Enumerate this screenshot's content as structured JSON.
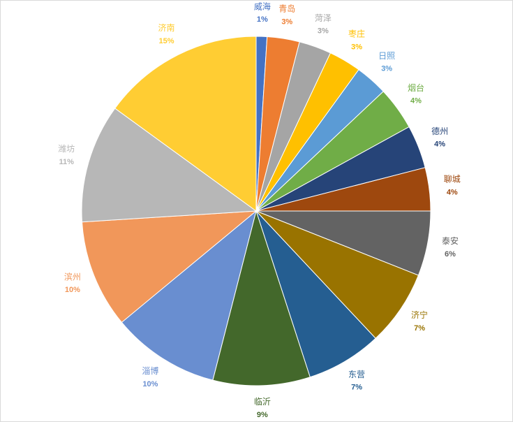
{
  "chart_data": {
    "type": "pie",
    "categories": [
      "威海",
      "青岛",
      "菏泽",
      "枣庄",
      "日照",
      "烟台",
      "德州",
      "聊城",
      "泰安",
      "济宁",
      "东营",
      "临沂",
      "淄博",
      "滨州",
      "潍坊",
      "济南"
    ],
    "values": [
      1,
      3,
      3,
      3,
      3,
      4,
      4,
      4,
      6,
      7,
      7,
      9,
      10,
      10,
      11,
      15
    ],
    "value_labels": [
      "1%",
      "3%",
      "3%",
      "3%",
      "3%",
      "4%",
      "4%",
      "4%",
      "6%",
      "7%",
      "7%",
      "9%",
      "10%",
      "10%",
      "11%",
      "15%"
    ],
    "colors": [
      "#4472c4",
      "#ed7d31",
      "#a5a5a5",
      "#ffc000",
      "#5b9bd5",
      "#70ad47",
      "#264478",
      "#9e480e",
      "#636363",
      "#997300",
      "#255e91",
      "#43682b",
      "#698ed0",
      "#f1975a",
      "#b7b7b7",
      "#ffcd33"
    ]
  }
}
